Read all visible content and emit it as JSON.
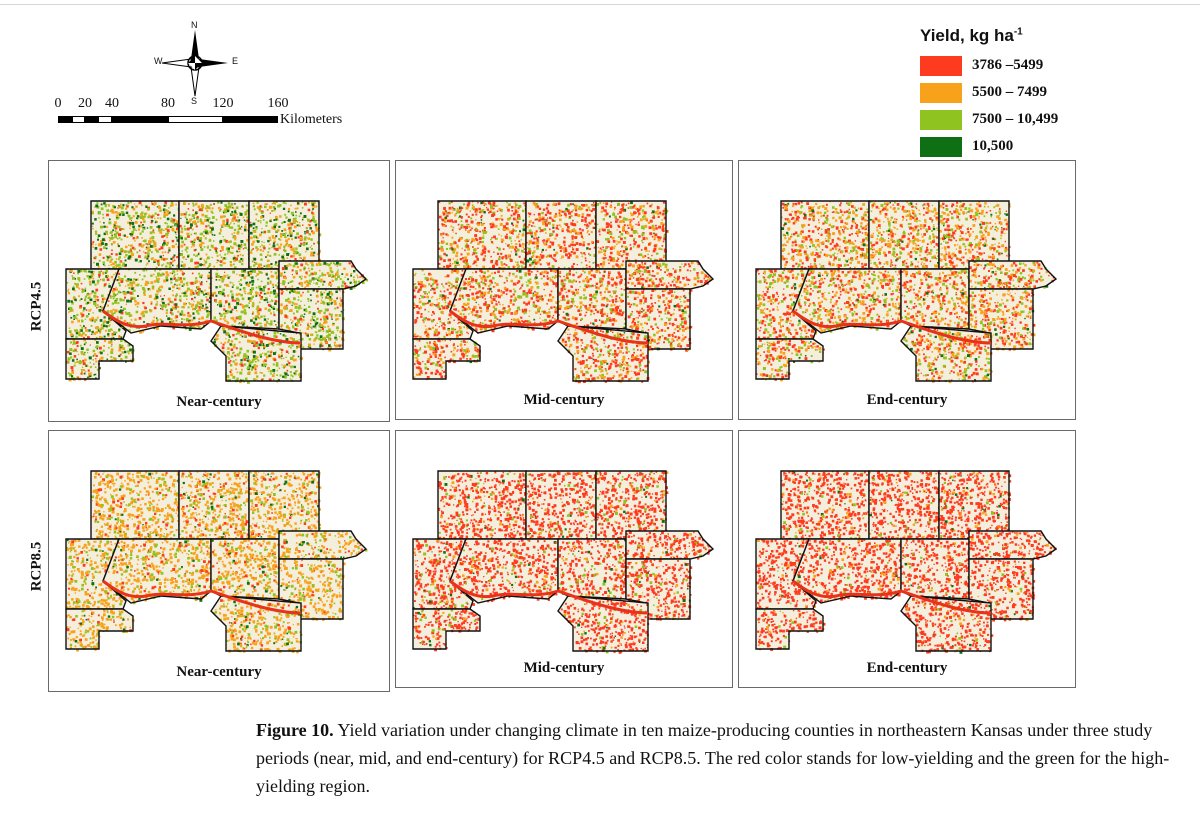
{
  "compass": {
    "n": "N",
    "s": "S",
    "e": "E",
    "w": "W"
  },
  "scale_bar": {
    "ticks": [
      "0",
      "20",
      "40",
      "80",
      "120",
      "160"
    ],
    "unit": "Kilometers"
  },
  "legend": {
    "title": "Yield, kg ha",
    "title_superscript": "-1",
    "items": [
      {
        "label": "3786 –5499",
        "color": "#ff3b1f"
      },
      {
        "label": "5500 – 7499",
        "color": "#f8a21c"
      },
      {
        "label": "7500 – 10,499",
        "color": "#8fc31f"
      },
      {
        "label": "10,500",
        "color": "#0f6f14"
      }
    ]
  },
  "rows": [
    {
      "scenario": "RCP4.5",
      "panels": [
        {
          "period": "Near-century",
          "mix": {
            "red": 0.12,
            "orange": 0.3,
            "lightgreen": 0.4,
            "darkgreen": 0.18
          }
        },
        {
          "period": "Mid-century",
          "mix": {
            "red": 0.55,
            "orange": 0.25,
            "lightgreen": 0.17,
            "darkgreen": 0.03
          }
        },
        {
          "period": "End-century",
          "mix": {
            "red": 0.42,
            "orange": 0.35,
            "lightgreen": 0.2,
            "darkgreen": 0.03
          }
        }
      ]
    },
    {
      "scenario": "RCP8.5",
      "panels": [
        {
          "period": "Near-century",
          "mix": {
            "red": 0.1,
            "orange": 0.7,
            "lightgreen": 0.15,
            "darkgreen": 0.05
          }
        },
        {
          "period": "Mid-century",
          "mix": {
            "red": 0.82,
            "orange": 0.08,
            "lightgreen": 0.08,
            "darkgreen": 0.02
          }
        },
        {
          "period": "End-century",
          "mix": {
            "red": 0.86,
            "orange": 0.07,
            "lightgreen": 0.05,
            "darkgreen": 0.02
          }
        }
      ]
    }
  ],
  "caption": {
    "label": "Figure 10.",
    "text": " Yield variation under changing climate in ten maize-producing counties in northeastern Kansas under three study periods (near, mid, and end-century) for RCP4.5 and RCP8.5. The red color stands for low-yielding and the green for the high-yielding region."
  }
}
